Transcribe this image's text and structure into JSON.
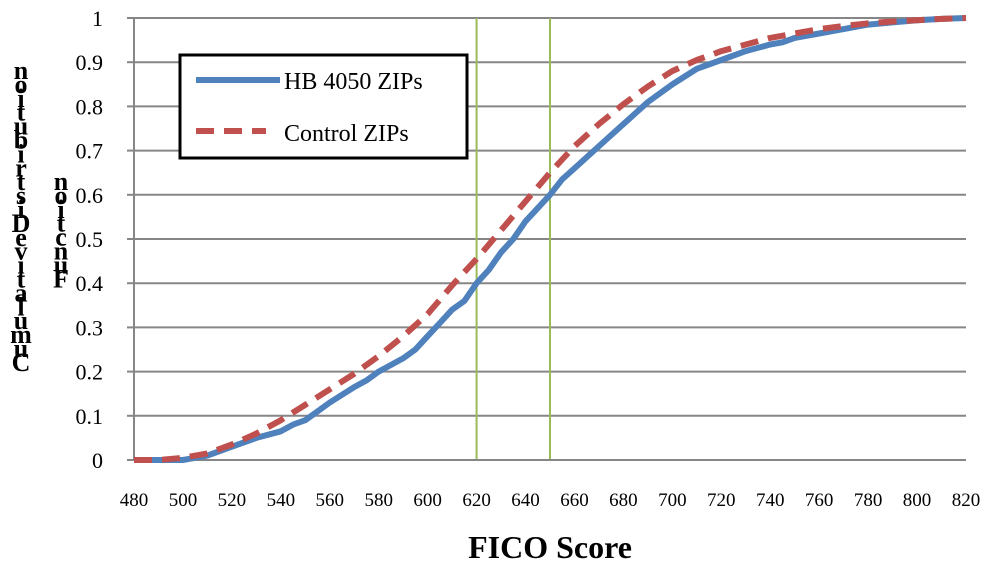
{
  "chart_data": {
    "type": "line",
    "title": "",
    "xlabel": "FICO Score",
    "ylabel": "Cumulative Distribution Function",
    "xlim": [
      480,
      820
    ],
    "ylim": [
      0,
      1
    ],
    "x_ticks": [
      "480",
      "500",
      "520",
      "540",
      "560",
      "580",
      "600",
      "620",
      "640",
      "660",
      "680",
      "700",
      "720",
      "740",
      "760",
      "780",
      "800",
      "820"
    ],
    "y_ticks": [
      "0",
      "0.1",
      "0.2",
      "0.3",
      "0.4",
      "0.5",
      "0.6",
      "0.7",
      "0.8",
      "0.9",
      "1"
    ],
    "grid": "horizontal",
    "reference_lines_x": [
      620,
      650
    ],
    "legend_position": "top-left",
    "series": [
      {
        "name": "HB 4050 ZIPs",
        "color": "#4F81BD",
        "style": "solid",
        "x": [
          480,
          490,
          500,
          505,
          510,
          520,
          530,
          540,
          545,
          550,
          555,
          560,
          570,
          575,
          580,
          590,
          595,
          600,
          605,
          610,
          615,
          620,
          625,
          630,
          635,
          640,
          645,
          650,
          655,
          660,
          670,
          680,
          690,
          700,
          710,
          720,
          730,
          740,
          745,
          750,
          760,
          770,
          780,
          790,
          800,
          810,
          820
        ],
        "y": [
          0,
          0,
          0,
          0.005,
          0.01,
          0.03,
          0.05,
          0.065,
          0.08,
          0.09,
          0.11,
          0.13,
          0.165,
          0.18,
          0.2,
          0.23,
          0.25,
          0.28,
          0.31,
          0.34,
          0.36,
          0.4,
          0.43,
          0.47,
          0.5,
          0.54,
          0.57,
          0.6,
          0.635,
          0.66,
          0.71,
          0.76,
          0.81,
          0.85,
          0.885,
          0.905,
          0.925,
          0.94,
          0.945,
          0.955,
          0.965,
          0.975,
          0.985,
          0.99,
          0.995,
          0.998,
          1.0
        ]
      },
      {
        "name": "Control ZIPs",
        "color": "#C0504D",
        "style": "dashed",
        "x": [
          480,
          490,
          500,
          510,
          520,
          530,
          540,
          550,
          560,
          570,
          580,
          590,
          600,
          610,
          620,
          630,
          640,
          650,
          660,
          670,
          680,
          690,
          700,
          710,
          720,
          730,
          740,
          750,
          760,
          770,
          780,
          790,
          800,
          810,
          820
        ],
        "y": [
          0,
          0,
          0.005,
          0.015,
          0.035,
          0.06,
          0.09,
          0.125,
          0.16,
          0.195,
          0.235,
          0.28,
          0.33,
          0.395,
          0.455,
          0.52,
          0.585,
          0.65,
          0.71,
          0.76,
          0.805,
          0.845,
          0.88,
          0.905,
          0.925,
          0.94,
          0.955,
          0.965,
          0.975,
          0.982,
          0.988,
          0.992,
          0.995,
          0.998,
          1.0
        ]
      }
    ]
  },
  "ylabel_columns": [
    "Cumulative Distribution",
    "Function"
  ]
}
